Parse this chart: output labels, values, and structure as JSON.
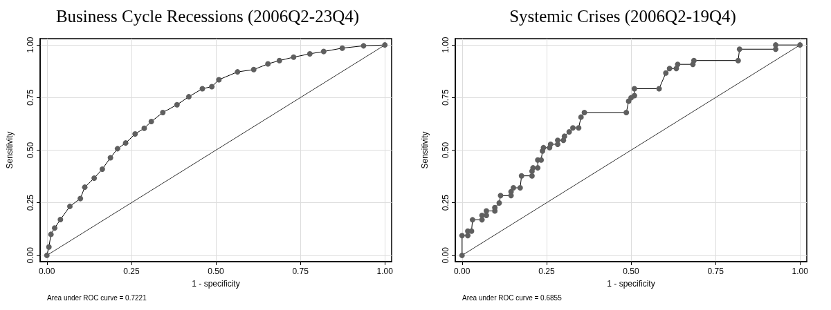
{
  "chart_data": [
    {
      "type": "line",
      "title": "Business Cycle Recessions (2006Q2-23Q4)",
      "xlabel": "1 - specificity",
      "ylabel": "Sensitivity",
      "annotations": [
        "Area under ROC curve = 0.7221"
      ],
      "xlim": [
        -0.02,
        1.02
      ],
      "ylim": [
        -0.03,
        1.03
      ],
      "xticks": [
        {
          "value": 0,
          "label": "0.00"
        },
        {
          "value": 0.25,
          "label": "0.25"
        },
        {
          "value": 0.5,
          "label": "0.50"
        },
        {
          "value": 0.75,
          "label": "0.75"
        },
        {
          "value": 1,
          "label": "1.00"
        }
      ],
      "yticks": [
        {
          "value": 0,
          "label": "0.00"
        },
        {
          "value": 0.25,
          "label": "0.25"
        },
        {
          "value": 0.5,
          "label": "0.50"
        },
        {
          "value": 0.75,
          "label": "0.75"
        },
        {
          "value": 1,
          "label": "1.00"
        }
      ],
      "grid": true,
      "series": [
        {
          "color": "#5f5f5f",
          "marker": "circle",
          "x": [
            0,
            0.006,
            0.012,
            0.023,
            0.04,
            0.068,
            0.099,
            0.112,
            0.14,
            0.164,
            0.188,
            0.209,
            0.233,
            0.261,
            0.288,
            0.309,
            0.343,
            0.385,
            0.42,
            0.46,
            0.488,
            0.509,
            0.564,
            0.612,
            0.654,
            0.688,
            0.73,
            0.778,
            0.819,
            0.874,
            0.937,
            1
          ],
          "values": [
            0,
            0.04,
            0.1,
            0.13,
            0.17,
            0.233,
            0.27,
            0.324,
            0.367,
            0.41,
            0.464,
            0.507,
            0.534,
            0.577,
            0.604,
            0.636,
            0.679,
            0.716,
            0.754,
            0.792,
            0.802,
            0.835,
            0.872,
            0.883,
            0.91,
            0.926,
            0.942,
            0.958,
            0.969,
            0.985,
            0.996,
            1
          ]
        },
        {
          "color": "#333333",
          "marker": "none",
          "x": [
            0,
            1
          ],
          "values": [
            0,
            1
          ]
        }
      ]
    },
    {
      "type": "line",
      "title": "Systemic Crises (2006Q2-19Q4)",
      "xlabel": "1 - specificity",
      "ylabel": "Sensitivity",
      "annotations": [
        "Area under ROC curve = 0.6855"
      ],
      "xlim": [
        -0.02,
        1.02
      ],
      "ylim": [
        -0.03,
        1.03
      ],
      "xticks": [
        {
          "value": 0,
          "label": "0.00"
        },
        {
          "value": 0.25,
          "label": "0.25"
        },
        {
          "value": 0.5,
          "label": "0.50"
        },
        {
          "value": 0.75,
          "label": "0.75"
        },
        {
          "value": 1,
          "label": "1.00"
        }
      ],
      "yticks": [
        {
          "value": 0,
          "label": "0.00"
        },
        {
          "value": 0.25,
          "label": "0.25"
        },
        {
          "value": 0.5,
          "label": "0.50"
        },
        {
          "value": 0.75,
          "label": "0.75"
        },
        {
          "value": 1,
          "label": "1.00"
        }
      ],
      "grid": true,
      "series": [
        {
          "color": "#5f5f5f",
          "marker": "circle",
          "x": [
            0,
            0,
            0.017,
            0.017,
            0.028,
            0.031,
            0.059,
            0.059,
            0.072,
            0.072,
            0.097,
            0.097,
            0.11,
            0.114,
            0.145,
            0.145,
            0.152,
            0.172,
            0.176,
            0.207,
            0.207,
            0.21,
            0.224,
            0.224,
            0.234,
            0.238,
            0.241,
            0.259,
            0.262,
            0.283,
            0.283,
            0.3,
            0.303,
            0.317,
            0.328,
            0.345,
            0.352,
            0.362,
            0.486,
            0.493,
            0.5,
            0.51,
            0.51,
            0.583,
            0.603,
            0.614,
            0.634,
            0.638,
            0.683,
            0.686,
            0.817,
            0.821,
            0.928,
            0.928,
            1
          ],
          "values": [
            0,
            0.094,
            0.094,
            0.115,
            0.115,
            0.169,
            0.169,
            0.19,
            0.19,
            0.211,
            0.211,
            0.227,
            0.249,
            0.284,
            0.284,
            0.302,
            0.321,
            0.321,
            0.378,
            0.378,
            0.4,
            0.416,
            0.416,
            0.453,
            0.453,
            0.496,
            0.512,
            0.512,
            0.528,
            0.528,
            0.547,
            0.547,
            0.566,
            0.587,
            0.606,
            0.606,
            0.657,
            0.679,
            0.679,
            0.733,
            0.749,
            0.759,
            0.792,
            0.792,
            0.867,
            0.888,
            0.888,
            0.908,
            0.908,
            0.926,
            0.926,
            0.98,
            0.98,
            1,
            1
          ]
        },
        {
          "color": "#333333",
          "marker": "none",
          "x": [
            0,
            1
          ],
          "values": [
            0,
            1
          ]
        }
      ]
    }
  ]
}
